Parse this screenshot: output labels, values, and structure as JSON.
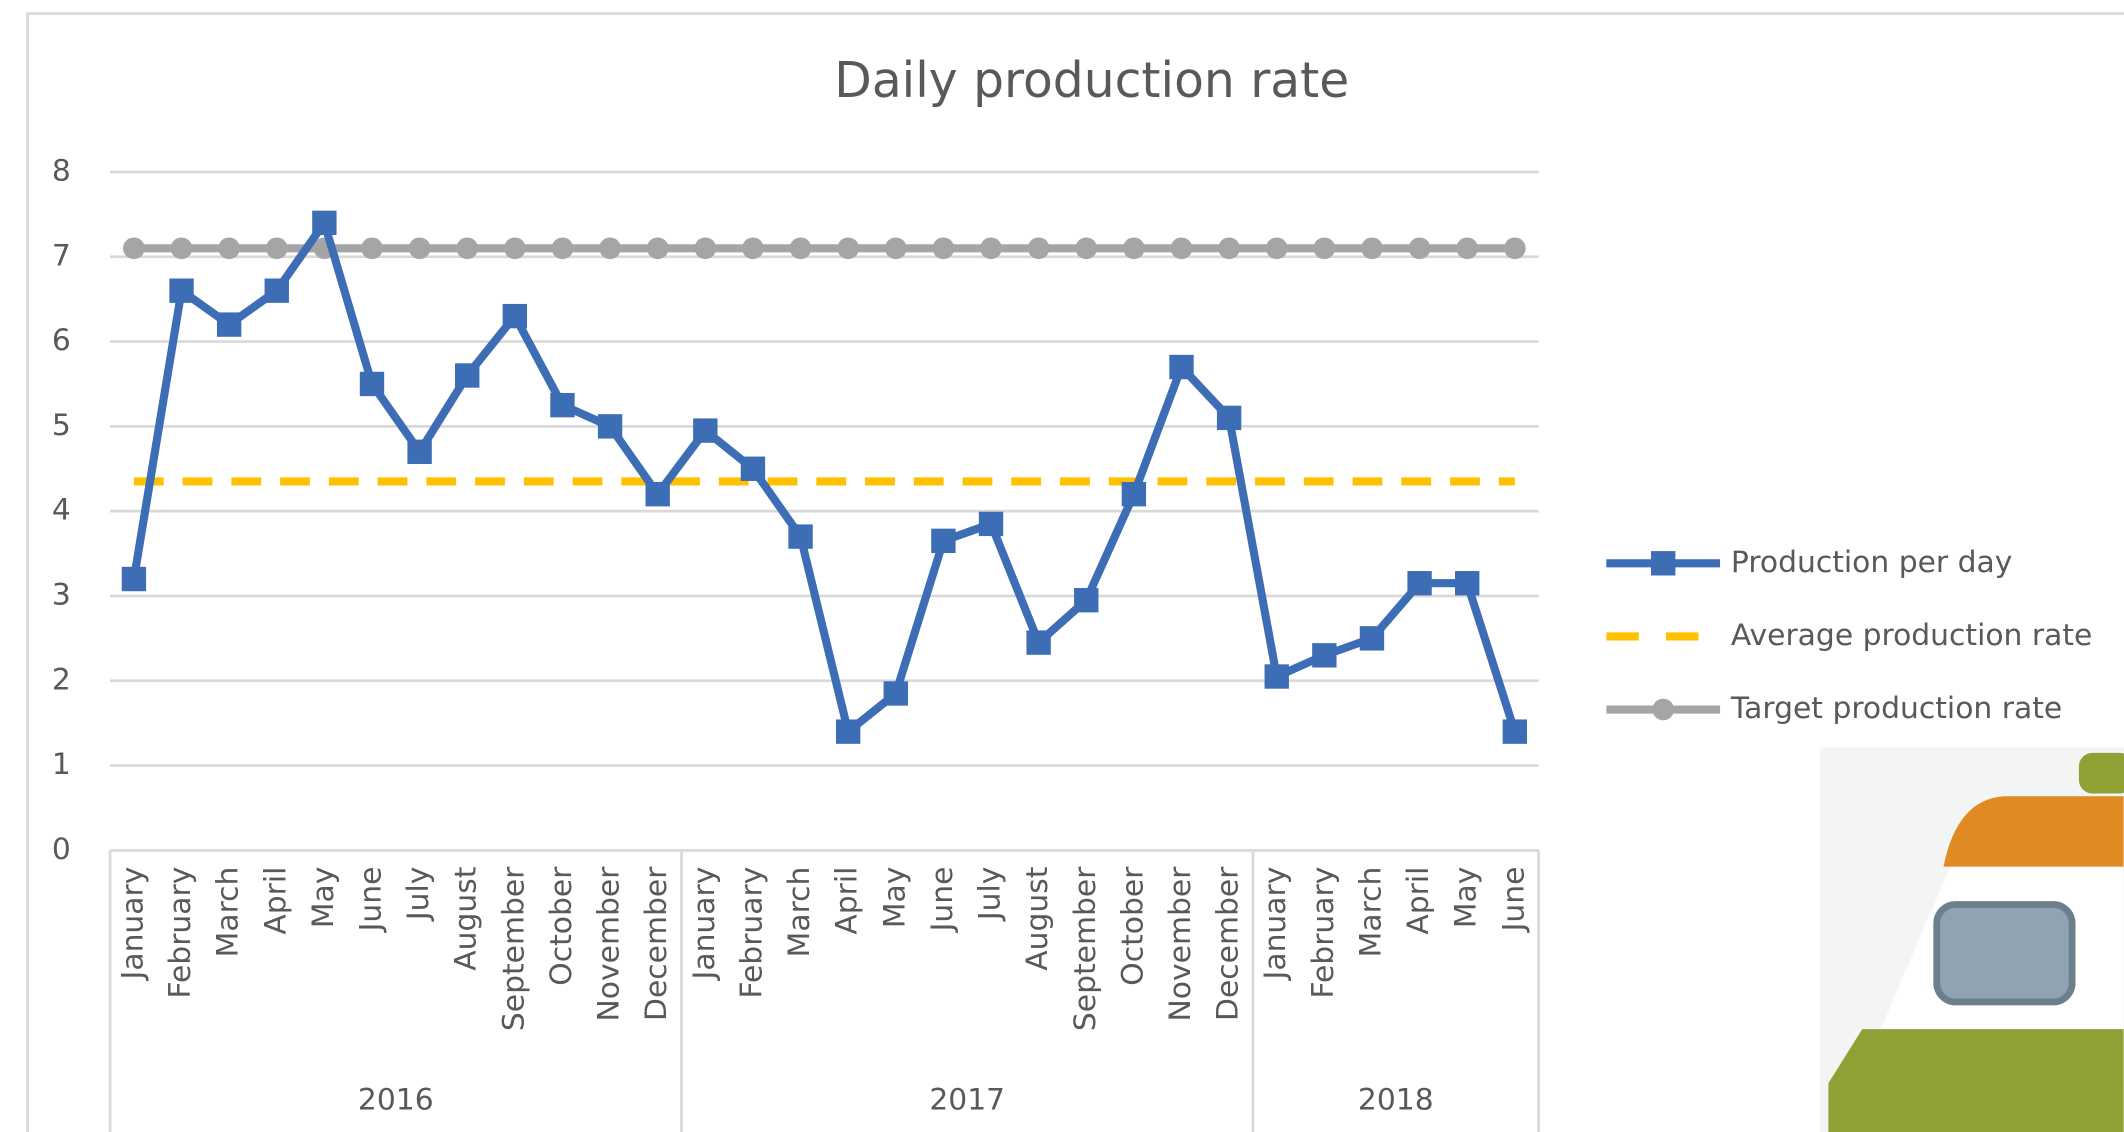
{
  "chart_data": {
    "type": "line",
    "title": "Daily production rate",
    "category_groups": [
      {
        "label": "2016",
        "categories": [
          "January",
          "February",
          "March",
          "April",
          "May",
          "June",
          "July",
          "August",
          "September",
          "October",
          "November",
          "December"
        ]
      },
      {
        "label": "2017",
        "categories": [
          "January",
          "February",
          "March",
          "April",
          "May",
          "June",
          "July",
          "August",
          "September",
          "October",
          "November",
          "December"
        ]
      },
      {
        "label": "2018",
        "categories": [
          "January",
          "February",
          "March",
          "April",
          "May",
          "June"
        ]
      }
    ],
    "series": [
      {
        "name": "Production per day",
        "color": "#3d6db5",
        "marker": "square",
        "dashed": false,
        "values": [
          3.2,
          6.6,
          6.2,
          6.6,
          7.4,
          5.5,
          4.7,
          5.6,
          6.3,
          5.25,
          5.0,
          4.2,
          4.95,
          4.5,
          3.7,
          1.4,
          1.85,
          3.65,
          3.85,
          2.45,
          2.95,
          4.2,
          5.7,
          5.1,
          2.05,
          2.3,
          2.5,
          3.15,
          3.15,
          1.4
        ]
      },
      {
        "name": "Average production rate",
        "color": "#ffc000",
        "marker": null,
        "dashed": true,
        "values": [
          4.35,
          4.35,
          4.35,
          4.35,
          4.35,
          4.35,
          4.35,
          4.35,
          4.35,
          4.35,
          4.35,
          4.35,
          4.35,
          4.35,
          4.35,
          4.35,
          4.35,
          4.35,
          4.35,
          4.35,
          4.35,
          4.35,
          4.35,
          4.35,
          4.35,
          4.35,
          4.35,
          4.35,
          4.35,
          4.35
        ]
      },
      {
        "name": "Target production rate",
        "color": "#a5a5a5",
        "marker": "circle",
        "dashed": false,
        "values": [
          7.1,
          7.1,
          7.1,
          7.1,
          7.1,
          7.1,
          7.1,
          7.1,
          7.1,
          7.1,
          7.1,
          7.1,
          7.1,
          7.1,
          7.1,
          7.1,
          7.1,
          7.1,
          7.1,
          7.1,
          7.1,
          7.1,
          7.1,
          7.1,
          7.1,
          7.1,
          7.1,
          7.1,
          7.1,
          7.1
        ]
      }
    ],
    "ylim": [
      0,
      8
    ],
    "yticks": [
      0,
      1,
      2,
      3,
      4,
      5,
      6,
      7,
      8
    ],
    "grid": true,
    "legend": "right"
  }
}
